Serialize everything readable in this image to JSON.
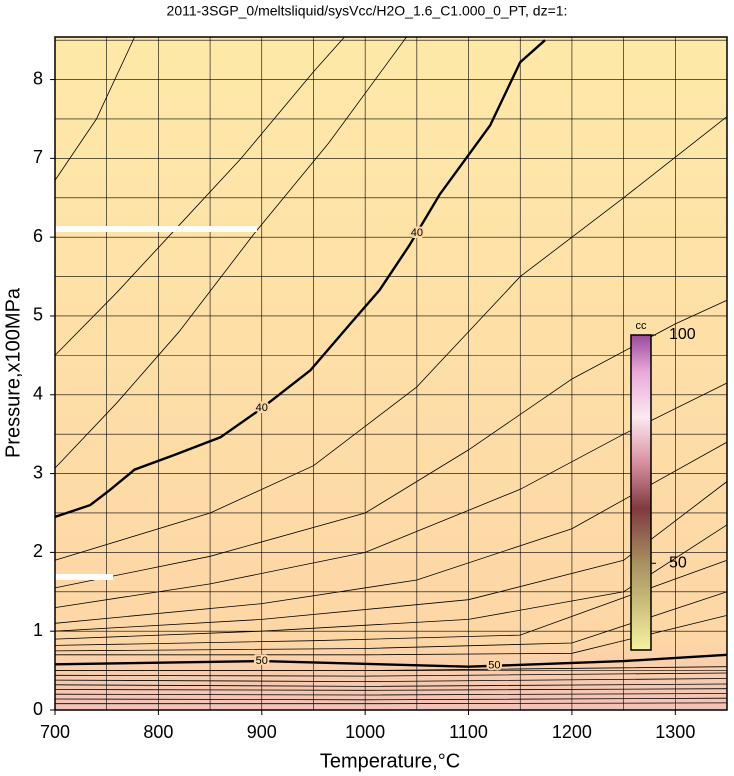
{
  "chart_data": {
    "type": "contour",
    "title": "2011-3SGP_0/meltsliquid/sysVcc/H2O_1.6_C1.000_0_PT, dz=1:",
    "xlabel": "Temperature,°C",
    "ylabel": "Pressure,x100MPa",
    "xlim": [
      700,
      1350
    ],
    "ylim": [
      0,
      8.54
    ],
    "xticks": [
      700,
      800,
      900,
      1000,
      1100,
      1200,
      1300
    ],
    "yticks": [
      0,
      1,
      2,
      3,
      4,
      5,
      6,
      7,
      8
    ],
    "xgrid": [
      750,
      850,
      950,
      1050,
      1150,
      1250,
      1350
    ],
    "ygrid": [
      0.5,
      1.5,
      2.5,
      3.5,
      4.5,
      5.5,
      6.5,
      7.5,
      8.5
    ],
    "grid": true,
    "line_color": "#000000",
    "background_colors": [
      "#fee9a8",
      "#fdd6a6",
      "#f2c2b8"
    ],
    "contours": [
      {
        "x": [
          700,
          740,
          777
        ],
        "y": [
          6.72,
          7.5,
          8.54
        ]
      },
      {
        "x": [
          700,
          760,
          820,
          880,
          950,
          980
        ],
        "y": [
          4.5,
          5.3,
          6.15,
          7.0,
          8.1,
          8.54
        ]
      },
      {
        "x": [
          700,
          760,
          820,
          893,
          965,
          1040
        ],
        "y": [
          3.07,
          3.9,
          4.8,
          6.05,
          7.2,
          8.54
        ]
      },
      {
        "level": 40,
        "bold": true,
        "label_x": [
          900,
          1050
        ],
        "x": [
          700,
          734,
          753,
          777,
          816,
          860,
          898,
          947,
          985,
          1014,
          1043,
          1072,
          1121,
          1150,
          1174
        ],
        "y": [
          2.45,
          2.6,
          2.79,
          3.05,
          3.24,
          3.46,
          3.81,
          4.31,
          4.89,
          5.33,
          5.9,
          6.54,
          7.42,
          8.22,
          8.5
        ]
      },
      {
        "x": [
          700,
          850,
          950,
          1050,
          1150,
          1250,
          1350
        ],
        "y": [
          1.9,
          2.5,
          3.1,
          4.1,
          5.5,
          6.5,
          7.53
        ]
      },
      {
        "x": [
          700,
          850,
          1000,
          1100,
          1200,
          1300,
          1350
        ],
        "y": [
          1.55,
          1.95,
          2.5,
          3.3,
          4.2,
          4.9,
          5.2
        ]
      },
      {
        "x": [
          700,
          850,
          1000,
          1150,
          1250,
          1350
        ],
        "y": [
          1.3,
          1.6,
          2.0,
          2.8,
          3.5,
          4.15
        ]
      },
      {
        "x": [
          700,
          900,
          1050,
          1200,
          1350
        ],
        "y": [
          1.1,
          1.35,
          1.65,
          2.3,
          3.4
        ]
      },
      {
        "x": [
          700,
          900,
          1100,
          1250,
          1350
        ],
        "y": [
          1.0,
          1.15,
          1.4,
          1.9,
          2.9
        ]
      },
      {
        "x": [
          700,
          900,
          1100,
          1250,
          1350
        ],
        "y": [
          0.9,
          1.0,
          1.15,
          1.5,
          2.35
        ]
      },
      {
        "x": [
          700,
          950,
          1150,
          1350
        ],
        "y": [
          0.82,
          0.88,
          0.95,
          1.9
        ]
      },
      {
        "x": [
          700,
          1000,
          1200,
          1350
        ],
        "y": [
          0.75,
          0.78,
          0.85,
          1.5
        ]
      },
      {
        "x": [
          700,
          1000,
          1200,
          1350
        ],
        "y": [
          0.7,
          0.7,
          0.72,
          1.2
        ]
      },
      {
        "level": 50,
        "bold": true,
        "label_x": [
          900,
          1125
        ],
        "x": [
          700,
          900,
          1100,
          1250,
          1350
        ],
        "y": [
          0.58,
          0.62,
          0.55,
          0.62,
          0.7
        ]
      },
      {
        "x": [
          700,
          1000,
          1350
        ],
        "y": [
          0.5,
          0.5,
          0.55
        ]
      },
      {
        "x": [
          700,
          1000,
          1350
        ],
        "y": [
          0.44,
          0.43,
          0.47
        ]
      },
      {
        "x": [
          700,
          1000,
          1350
        ],
        "y": [
          0.38,
          0.36,
          0.4
        ]
      },
      {
        "x": [
          700,
          1000,
          1350
        ],
        "y": [
          0.32,
          0.3,
          0.33
        ]
      },
      {
        "x": [
          700,
          1000,
          1350
        ],
        "y": [
          0.26,
          0.25,
          0.27
        ]
      },
      {
        "x": [
          700,
          1000,
          1350
        ],
        "y": [
          0.2,
          0.19,
          0.21
        ]
      },
      {
        "x": [
          700,
          1000,
          1350
        ],
        "y": [
          0.14,
          0.13,
          0.15
        ]
      },
      {
        "x": [
          700,
          1000,
          1350
        ],
        "y": [
          0.08,
          0.08,
          0.09
        ]
      }
    ],
    "colorbar": {
      "label": "cc",
      "lim": [
        31,
        100
      ],
      "ticks": [
        50,
        100
      ],
      "stops": [
        {
          "value": 31,
          "color": "#f6f2a0"
        },
        {
          "value": 50,
          "color": "#a89060"
        },
        {
          "value": 62,
          "color": "#803a40"
        },
        {
          "value": 72,
          "color": "#d890a0"
        },
        {
          "value": 82,
          "color": "#fde8f0"
        },
        {
          "value": 92,
          "color": "#e8a8d8"
        },
        {
          "value": 100,
          "color": "#9a4a9a"
        }
      ]
    }
  }
}
